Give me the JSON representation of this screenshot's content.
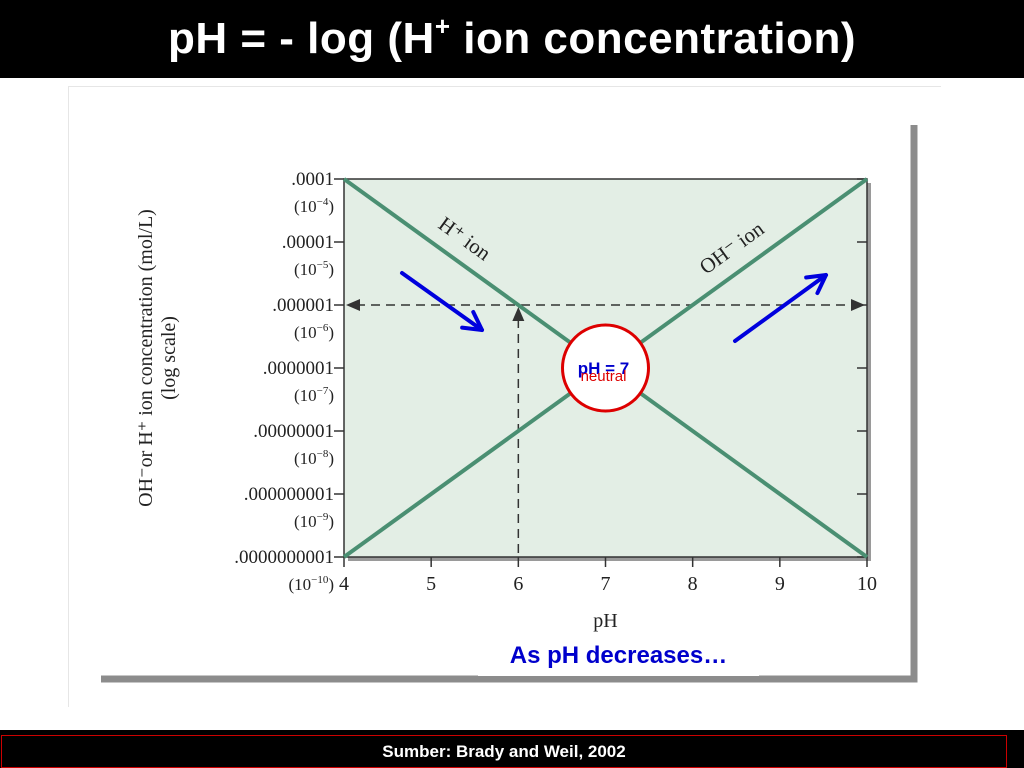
{
  "slide": {
    "title": {
      "main": "pH = - log (H",
      "sup": "+",
      "rest": " ion concentration)"
    },
    "caption": "As pH decreases…",
    "source": "Sumber:  Brady and Weil, 2002"
  },
  "colors": {
    "line": "#4a8f72",
    "plot_bg": "#e3eee5",
    "arrow": "#0000dd",
    "circle": "#dd0000",
    "neutral_ph": "#0000cc",
    "neutral_label": "#dd0000"
  },
  "chart_data": {
    "type": "line",
    "title": "",
    "xlabel": "pH",
    "ylabel": "OH⁻or H⁺ ion concentration (mol/L)",
    "ylabel_2": "(log scale)",
    "x_ticks": [
      "4",
      "5",
      "6",
      "7",
      "8",
      "9",
      "10"
    ],
    "xlim": [
      4,
      10
    ],
    "ylim": [
      -10,
      -4
    ],
    "y_scale": "log",
    "y_ticks": [
      {
        "exp": -4,
        "label": ".0001",
        "power": "(10",
        "power_exp": "−4",
        "power_close": ")"
      },
      {
        "exp": -5,
        "label": ".00001",
        "power": "(10",
        "power_exp": "−5",
        "power_close": ")"
      },
      {
        "exp": -6,
        "label": ".000001",
        "power": "(10",
        "power_exp": "−6",
        "power_close": ")"
      },
      {
        "exp": -7,
        "label": ".0000001",
        "power": "(10",
        "power_exp": "−7",
        "power_close": ")"
      },
      {
        "exp": -8,
        "label": ".00000001",
        "power": "(10",
        "power_exp": "−8",
        "power_close": ")"
      },
      {
        "exp": -9,
        "label": ".000000001",
        "power": "(10",
        "power_exp": "−9",
        "power_close": ")"
      },
      {
        "exp": -10,
        "label": ".0000000001",
        "power": "(10",
        "power_exp": "−10",
        "power_close": ")"
      }
    ],
    "series": [
      {
        "name": "H⁺ ion",
        "x": [
          4,
          10
        ],
        "y_log10": [
          -4,
          -10
        ]
      },
      {
        "name": "OH⁻ ion",
        "x": [
          4,
          10
        ],
        "y_log10": [
          -10,
          -4
        ]
      }
    ],
    "reference": {
      "x": 6,
      "y_log10": -6
    },
    "annotation": {
      "ph_text": "pH = 7",
      "label": "neutral",
      "x": 7,
      "y_log10": -7
    },
    "trend_arrows": [
      "down",
      "up"
    ],
    "grid": false,
    "legend": "none"
  }
}
